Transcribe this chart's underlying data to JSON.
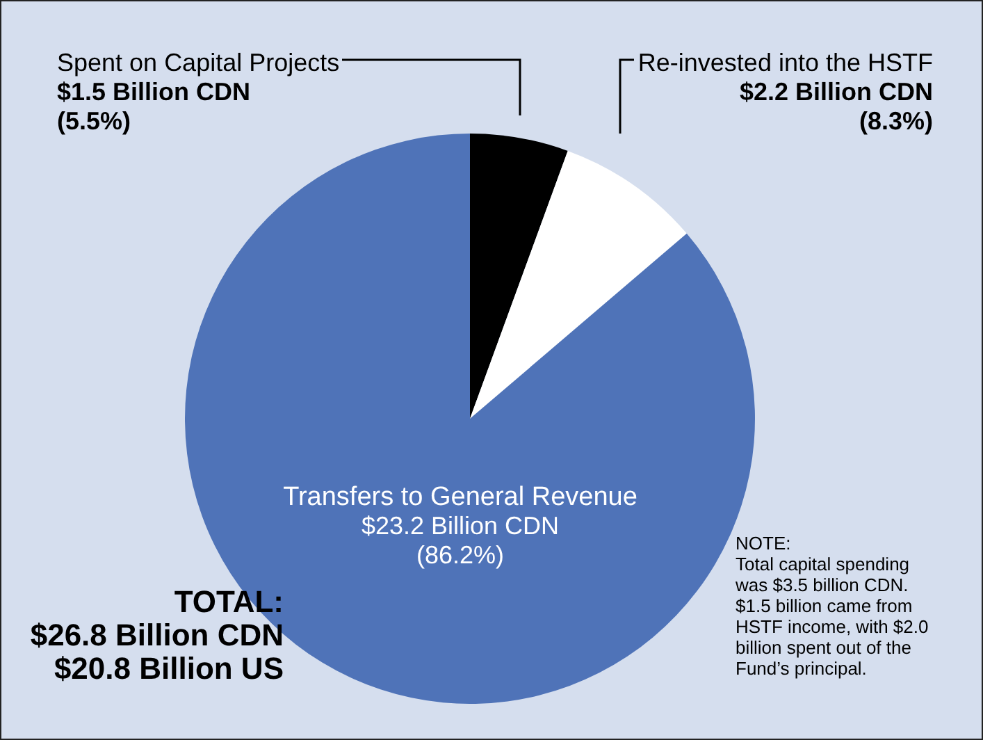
{
  "chart_data": {
    "type": "pie",
    "categories": [
      "Spent on Capital Projects",
      "Re-invested into the HSTF",
      "Transfers to General Revenue"
    ],
    "values": [
      1.5,
      2.2,
      23.2
    ],
    "colors": [
      "#000000",
      "#ffffff",
      "#4f73b8"
    ],
    "value_labels": [
      "$1.5 Billion CDN\n(5.5%)",
      "$2.2 Billion CDN\n(8.3%)",
      "$23.2 Billion CDN\n(86.2%)"
    ],
    "annotations": [
      "TOTAL:\n$26.8 Billion CDN\n$20.8 Billion US",
      "NOTE:\nTotal capital spending\nwas $3.5 billion CDN.\n$1.5 billion came from\nHSTF income, with $2.0\nbillion spent out of the\nFund’s principal."
    ]
  }
}
